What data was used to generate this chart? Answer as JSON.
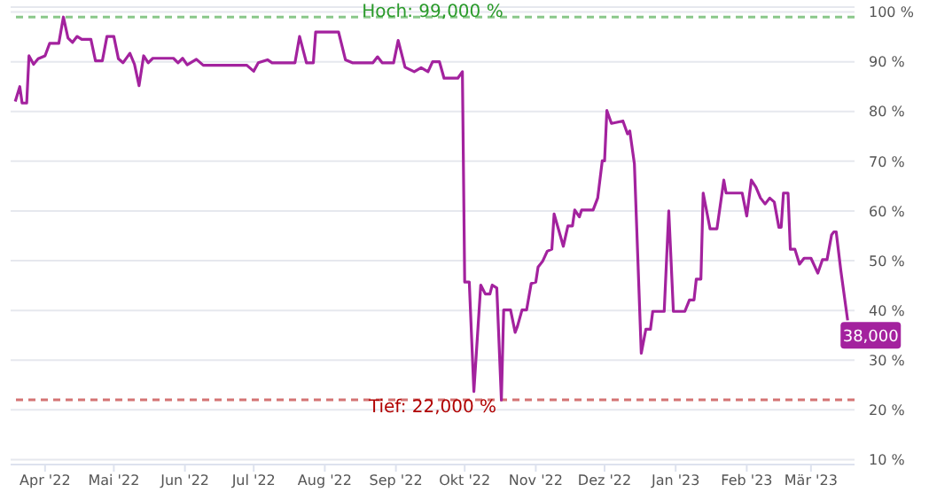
{
  "chart_data": {
    "type": "line",
    "x": [
      "2022-03-19",
      "2022-03-21",
      "2022-03-22",
      "2022-03-24",
      "2022-03-25",
      "2022-03-27",
      "2022-03-29",
      "2022-04-01",
      "2022-04-03",
      "2022-04-07",
      "2022-04-09",
      "2022-04-11",
      "2022-04-13",
      "2022-04-15",
      "2022-04-17",
      "2022-04-21",
      "2022-04-23",
      "2022-04-26",
      "2022-04-28",
      "2022-05-01",
      "2022-05-03",
      "2022-05-05",
      "2022-05-08",
      "2022-05-10",
      "2022-05-12",
      "2022-05-14",
      "2022-05-16",
      "2022-05-18",
      "2022-05-22",
      "2022-05-27",
      "2022-05-29",
      "2022-05-31",
      "2022-06-02",
      "2022-06-06",
      "2022-06-09",
      "2022-06-28",
      "2022-07-01",
      "2022-07-03",
      "2022-07-07",
      "2022-07-09",
      "2022-07-19",
      "2022-07-21",
      "2022-07-24",
      "2022-07-27",
      "2022-07-28",
      "2022-08-07",
      "2022-08-10",
      "2022-08-13",
      "2022-08-22",
      "2022-08-24",
      "2022-08-26",
      "2022-08-31",
      "2022-09-02",
      "2022-09-05",
      "2022-09-09",
      "2022-09-12",
      "2022-09-15",
      "2022-09-17",
      "2022-09-20",
      "2022-09-22",
      "2022-09-28",
      "2022-09-30",
      "2022-10-01",
      "2022-10-03",
      "2022-10-05",
      "2022-10-08",
      "2022-10-10",
      "2022-10-12",
      "2022-10-13",
      "2022-10-15",
      "2022-10-17",
      "2022-10-18",
      "2022-10-21",
      "2022-10-23",
      "2022-10-24",
      "2022-10-26",
      "2022-10-28",
      "2022-10-30",
      "2022-11-01",
      "2022-11-02",
      "2022-11-04",
      "2022-11-06",
      "2022-11-08",
      "2022-11-09",
      "2022-11-13",
      "2022-11-15",
      "2022-11-17",
      "2022-11-18",
      "2022-11-20",
      "2022-11-21",
      "2022-11-26",
      "2022-11-28",
      "2022-11-30",
      "2022-12-01",
      "2022-12-02",
      "2022-12-04",
      "2022-12-09",
      "2022-12-11",
      "2022-12-12",
      "2022-12-14",
      "2022-12-17",
      "2022-12-19",
      "2022-12-21",
      "2022-12-22",
      "2022-12-27",
      "2022-12-29",
      "2022-12-31",
      "2023-01-05",
      "2023-01-07",
      "2023-01-09",
      "2023-01-10",
      "2023-01-12",
      "2023-01-13",
      "2023-01-16",
      "2023-01-19",
      "2023-01-22",
      "2023-01-23",
      "2023-01-30",
      "2023-02-01",
      "2023-02-03",
      "2023-02-05",
      "2023-02-07",
      "2023-02-09",
      "2023-02-11",
      "2023-02-13",
      "2023-02-15",
      "2023-02-16",
      "2023-02-17",
      "2023-02-19",
      "2023-02-20",
      "2023-02-22",
      "2023-02-24",
      "2023-02-26",
      "2023-03-01",
      "2023-03-04",
      "2023-03-06",
      "2023-03-08",
      "2023-03-10",
      "2023-03-11",
      "2023-03-12",
      "2023-03-14",
      "2023-03-17"
    ],
    "series": [
      {
        "color": "#a3229e",
        "values": [
          82,
          85,
          81.7,
          81.7,
          91.2,
          89.5,
          90.6,
          91.2,
          93.7,
          93.7,
          99,
          94.8,
          93.9,
          95.1,
          94.5,
          94.5,
          90.2,
          90.2,
          95.1,
          95.1,
          90.6,
          89.8,
          91.7,
          89.5,
          85.2,
          91.2,
          89.8,
          90.7,
          90.7,
          90.7,
          89.8,
          90.7,
          89.4,
          90.5,
          89.3,
          89.3,
          88.1,
          89.8,
          90.4,
          89.8,
          89.8,
          95.1,
          89.8,
          89.8,
          96,
          96,
          90.4,
          89.8,
          89.8,
          91,
          89.8,
          89.8,
          94.3,
          88.9,
          88,
          88.8,
          88,
          90,
          90,
          86.7,
          86.7,
          88,
          45.7,
          45.7,
          23.7,
          45.1,
          43.3,
          43.3,
          45.1,
          44.5,
          22,
          40.1,
          40.1,
          35.6,
          36.8,
          40.1,
          40.1,
          45.4,
          45.7,
          48.7,
          49.9,
          51.9,
          52.3,
          59.4,
          52.9,
          57,
          57,
          60.2,
          58.8,
          60.2,
          60.2,
          62.6,
          70.1,
          70.1,
          80.2,
          77.6,
          78.1,
          75.5,
          76.1,
          69.5,
          31.4,
          36.2,
          36.2,
          39.8,
          39.8,
          60,
          39.8,
          39.8,
          42.1,
          42.1,
          46.3,
          46.3,
          63.6,
          56.4,
          56.4,
          66.2,
          63.6,
          63.6,
          59,
          66.2,
          64.8,
          62.6,
          61.4,
          62.6,
          61.8,
          56.7,
          56.7,
          63.6,
          63.6,
          52.3,
          52.3,
          49.3,
          50.5,
          50.5,
          47.5,
          50.2,
          50.2,
          55.2,
          55.8,
          55.8,
          48.1,
          38
        ]
      }
    ],
    "xlim": [
      "2022-03-17",
      "2023-03-20"
    ],
    "xticks": [
      {
        "value": "2022-04-01",
        "label": "Apr '22"
      },
      {
        "value": "2022-05-01",
        "label": "Mai '22"
      },
      {
        "value": "2022-06-01",
        "label": "Jun '22"
      },
      {
        "value": "2022-07-01",
        "label": "Jul '22"
      },
      {
        "value": "2022-08-01",
        "label": "Aug '22"
      },
      {
        "value": "2022-09-01",
        "label": "Sep '22"
      },
      {
        "value": "2022-10-01",
        "label": "Okt '22"
      },
      {
        "value": "2022-11-01",
        "label": "Nov '22"
      },
      {
        "value": "2022-12-01",
        "label": "Dez '22"
      },
      {
        "value": "2023-01-01",
        "label": "Jan '23"
      },
      {
        "value": "2023-02-01",
        "label": "Feb '23"
      },
      {
        "value": "2023-03-01",
        "label": "Mär '23"
      }
    ],
    "ylim": [
      9,
      101
    ],
    "yticks": [
      {
        "value": 10,
        "label": "10 %"
      },
      {
        "value": 20,
        "label": "20 %"
      },
      {
        "value": 30,
        "label": "30 %"
      },
      {
        "value": 40,
        "label": "40 %"
      },
      {
        "value": 50,
        "label": "50 %"
      },
      {
        "value": 60,
        "label": "60 %"
      },
      {
        "value": 70,
        "label": "70 %"
      },
      {
        "value": 80,
        "label": "80 %"
      },
      {
        "value": 90,
        "label": "90 %"
      },
      {
        "value": 100,
        "label": "100 %"
      }
    ],
    "grid": "y",
    "marker": "none",
    "line_style": "solid",
    "ref_lines": [
      {
        "axis": "y",
        "value": 99,
        "label": "Hoch: 99,000 %",
        "color": "#2a9a2a",
        "line_style": "dashed"
      },
      {
        "axis": "y",
        "value": 22,
        "label": "Tief: 22,000 %",
        "color": "#b00000",
        "line_style": "dashed"
      }
    ],
    "annotations": [
      {
        "text": "38,000",
        "x": "2023-03-17",
        "y": 38
      }
    ]
  }
}
